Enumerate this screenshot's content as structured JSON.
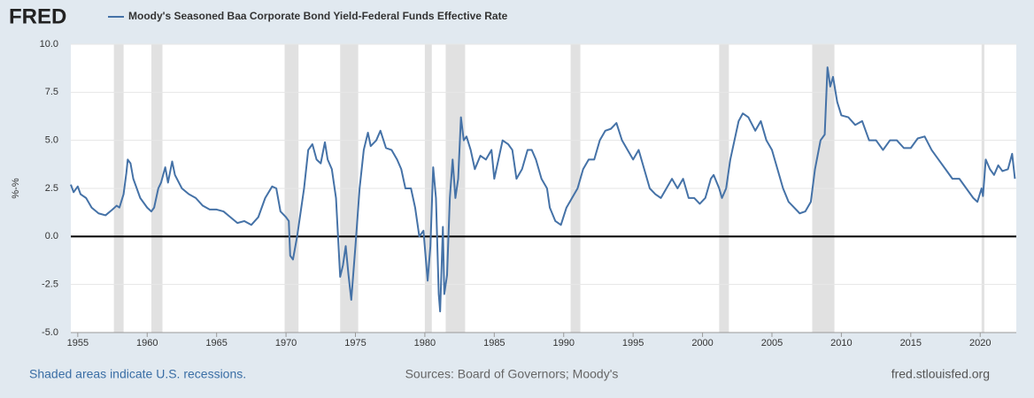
{
  "chart_data": {
    "type": "line",
    "logo": "FRED",
    "title": "Moody's Seasoned Baa Corporate Bond Yield-Federal Funds Effective Rate",
    "ylabel": "%-%",
    "note": "Shaded areas indicate U.S. recessions.",
    "source": "Sources: Board of Governors; Moody's",
    "site": "fred.stlouisfed.org",
    "xlim": [
      1954.5,
      2022.6
    ],
    "ylim": [
      -5,
      10
    ],
    "xticks": [
      1955,
      1960,
      1965,
      1970,
      1975,
      1980,
      1985,
      1990,
      1995,
      2000,
      2005,
      2010,
      2015,
      2020
    ],
    "yticks": [
      {
        "value": -5,
        "label": "-5.0"
      },
      -2.5,
      {
        "value": 0,
        "label": "0.0"
      },
      2.5,
      {
        "value": 5,
        "label": "5.0"
      },
      7.5,
      {
        "value": 10,
        "label": "10.0"
      }
    ],
    "grid": true,
    "recession_color": "#e1e1e1",
    "recessions": [
      [
        1957.6,
        1958.3
      ],
      [
        1960.3,
        1961.1
      ],
      [
        1969.9,
        1970.9
      ],
      [
        1973.9,
        1975.2
      ],
      [
        1980.0,
        1980.5
      ],
      [
        1981.5,
        1982.9
      ],
      [
        1990.5,
        1991.2
      ],
      [
        2001.2,
        2001.9
      ],
      [
        2007.9,
        2009.5
      ],
      [
        2020.1,
        2020.3
      ]
    ],
    "x": [
      1954.5,
      1954.7,
      1955.0,
      1955.2,
      1955.6,
      1956.0,
      1956.5,
      1957.0,
      1957.5,
      1957.8,
      1958.0,
      1958.3,
      1958.5,
      1958.6,
      1958.8,
      1959.0,
      1959.5,
      1960.0,
      1960.3,
      1960.5,
      1960.8,
      1961.0,
      1961.3,
      1961.5,
      1961.8,
      1962.0,
      1962.5,
      1963.0,
      1963.5,
      1964.0,
      1964.5,
      1965.0,
      1965.5,
      1966.0,
      1966.5,
      1967.0,
      1967.5,
      1968.0,
      1968.5,
      1969.0,
      1969.3,
      1969.6,
      1970.0,
      1970.2,
      1970.3,
      1970.5,
      1970.8,
      1971.0,
      1971.3,
      1971.6,
      1971.9,
      1972.2,
      1972.5,
      1972.8,
      1973.0,
      1973.3,
      1973.6,
      1973.9,
      1974.1,
      1974.3,
      1974.5,
      1974.7,
      1975.0,
      1975.3,
      1975.6,
      1975.9,
      1976.1,
      1976.5,
      1976.8,
      1977.2,
      1977.6,
      1978.0,
      1978.3,
      1978.6,
      1979.0,
      1979.3,
      1979.6,
      1979.9,
      1980.2,
      1980.4,
      1980.6,
      1980.8,
      1981.0,
      1981.1,
      1981.3,
      1981.4,
      1981.6,
      1981.8,
      1982.0,
      1982.2,
      1982.4,
      1982.6,
      1982.8,
      1983.0,
      1983.3,
      1983.6,
      1984.0,
      1984.4,
      1984.8,
      1985.0,
      1985.3,
      1985.6,
      1986.0,
      1986.3,
      1986.6,
      1987.0,
      1987.4,
      1987.7,
      1988.0,
      1988.4,
      1988.8,
      1989.0,
      1989.4,
      1989.8,
      1990.2,
      1990.6,
      1991.0,
      1991.4,
      1991.8,
      1992.2,
      1992.6,
      1993.0,
      1993.4,
      1993.8,
      1994.2,
      1994.6,
      1995.0,
      1995.4,
      1995.8,
      1996.2,
      1996.6,
      1997.0,
      1997.4,
      1997.8,
      1998.2,
      1998.6,
      1999.0,
      1999.4,
      1999.8,
      2000.2,
      2000.6,
      2000.8,
      2001.2,
      2001.4,
      2001.7,
      2002.0,
      2002.3,
      2002.6,
      2002.9,
      2003.3,
      2003.8,
      2004.2,
      2004.6,
      2005.0,
      2005.4,
      2005.8,
      2006.2,
      2006.6,
      2007.0,
      2007.4,
      2007.8,
      2008.1,
      2008.5,
      2008.8,
      2009.0,
      2009.2,
      2009.4,
      2009.7,
      2010.0,
      2010.5,
      2011.0,
      2011.5,
      2012.0,
      2012.5,
      2013.0,
      2013.5,
      2014.0,
      2014.5,
      2015.0,
      2015.5,
      2016.0,
      2016.5,
      2017.0,
      2017.5,
      2018.0,
      2018.5,
      2019.0,
      2019.5,
      2019.8,
      2020.1,
      2020.2,
      2020.4,
      2020.7,
      2021.0,
      2021.3,
      2021.6,
      2022.0,
      2022.3,
      2022.5
    ],
    "series": [
      {
        "name": "Moody's Seasoned Baa Corporate Bond Yield-Federal Funds Effective Rate",
        "color": "#4572a7",
        "values": [
          2.7,
          2.3,
          2.6,
          2.2,
          2.0,
          1.5,
          1.2,
          1.1,
          1.4,
          1.6,
          1.5,
          2.2,
          3.3,
          4.0,
          3.8,
          3.0,
          2.0,
          1.5,
          1.3,
          1.5,
          2.5,
          2.8,
          3.6,
          2.8,
          3.9,
          3.2,
          2.5,
          2.2,
          2.0,
          1.6,
          1.4,
          1.4,
          1.3,
          1.0,
          0.7,
          0.8,
          0.6,
          1.0,
          2.0,
          2.6,
          2.5,
          1.3,
          1.0,
          0.8,
          -1.0,
          -1.2,
          0.0,
          1.0,
          2.5,
          4.5,
          4.8,
          4.0,
          3.8,
          4.9,
          4.0,
          3.5,
          2.0,
          -2.1,
          -1.5,
          -0.5,
          -2.0,
          -3.3,
          -0.5,
          2.5,
          4.5,
          5.4,
          4.7,
          5.0,
          5.5,
          4.6,
          4.5,
          4.0,
          3.5,
          2.5,
          2.5,
          1.5,
          0.0,
          0.3,
          -2.3,
          -0.5,
          3.6,
          2.0,
          -3.0,
          -3.9,
          0.5,
          -3.0,
          -2.0,
          2.0,
          4.0,
          2.0,
          3.0,
          6.2,
          5.0,
          5.2,
          4.5,
          3.5,
          4.2,
          4.0,
          4.5,
          3.0,
          4.0,
          5.0,
          4.8,
          4.5,
          3.0,
          3.5,
          4.5,
          4.5,
          4.0,
          3.0,
          2.5,
          1.5,
          0.8,
          0.6,
          1.5,
          2.0,
          2.5,
          3.5,
          4.0,
          4.0,
          5.0,
          5.5,
          5.6,
          5.9,
          5.0,
          4.5,
          4.0,
          4.5,
          3.5,
          2.5,
          2.2,
          2.0,
          2.5,
          3.0,
          2.5,
          3.0,
          2.0,
          2.0,
          1.7,
          2.0,
          3.0,
          3.2,
          2.5,
          2.0,
          2.5,
          4.0,
          5.0,
          6.0,
          6.4,
          6.2,
          5.5,
          6.0,
          5.0,
          4.5,
          3.5,
          2.5,
          1.8,
          1.5,
          1.2,
          1.3,
          1.8,
          3.5,
          5.0,
          5.3,
          8.8,
          7.8,
          8.3,
          7.0,
          6.3,
          6.2,
          5.8,
          6.0,
          5.0,
          5.0,
          4.5,
          5.0,
          5.0,
          4.6,
          4.6,
          5.1,
          5.2,
          4.5,
          4.0,
          3.5,
          3.0,
          3.0,
          2.5,
          2.0,
          1.8,
          2.5,
          2.1,
          4.0,
          3.5,
          3.2,
          3.7,
          3.4,
          3.5,
          4.3,
          3.0
        ]
      }
    ]
  }
}
